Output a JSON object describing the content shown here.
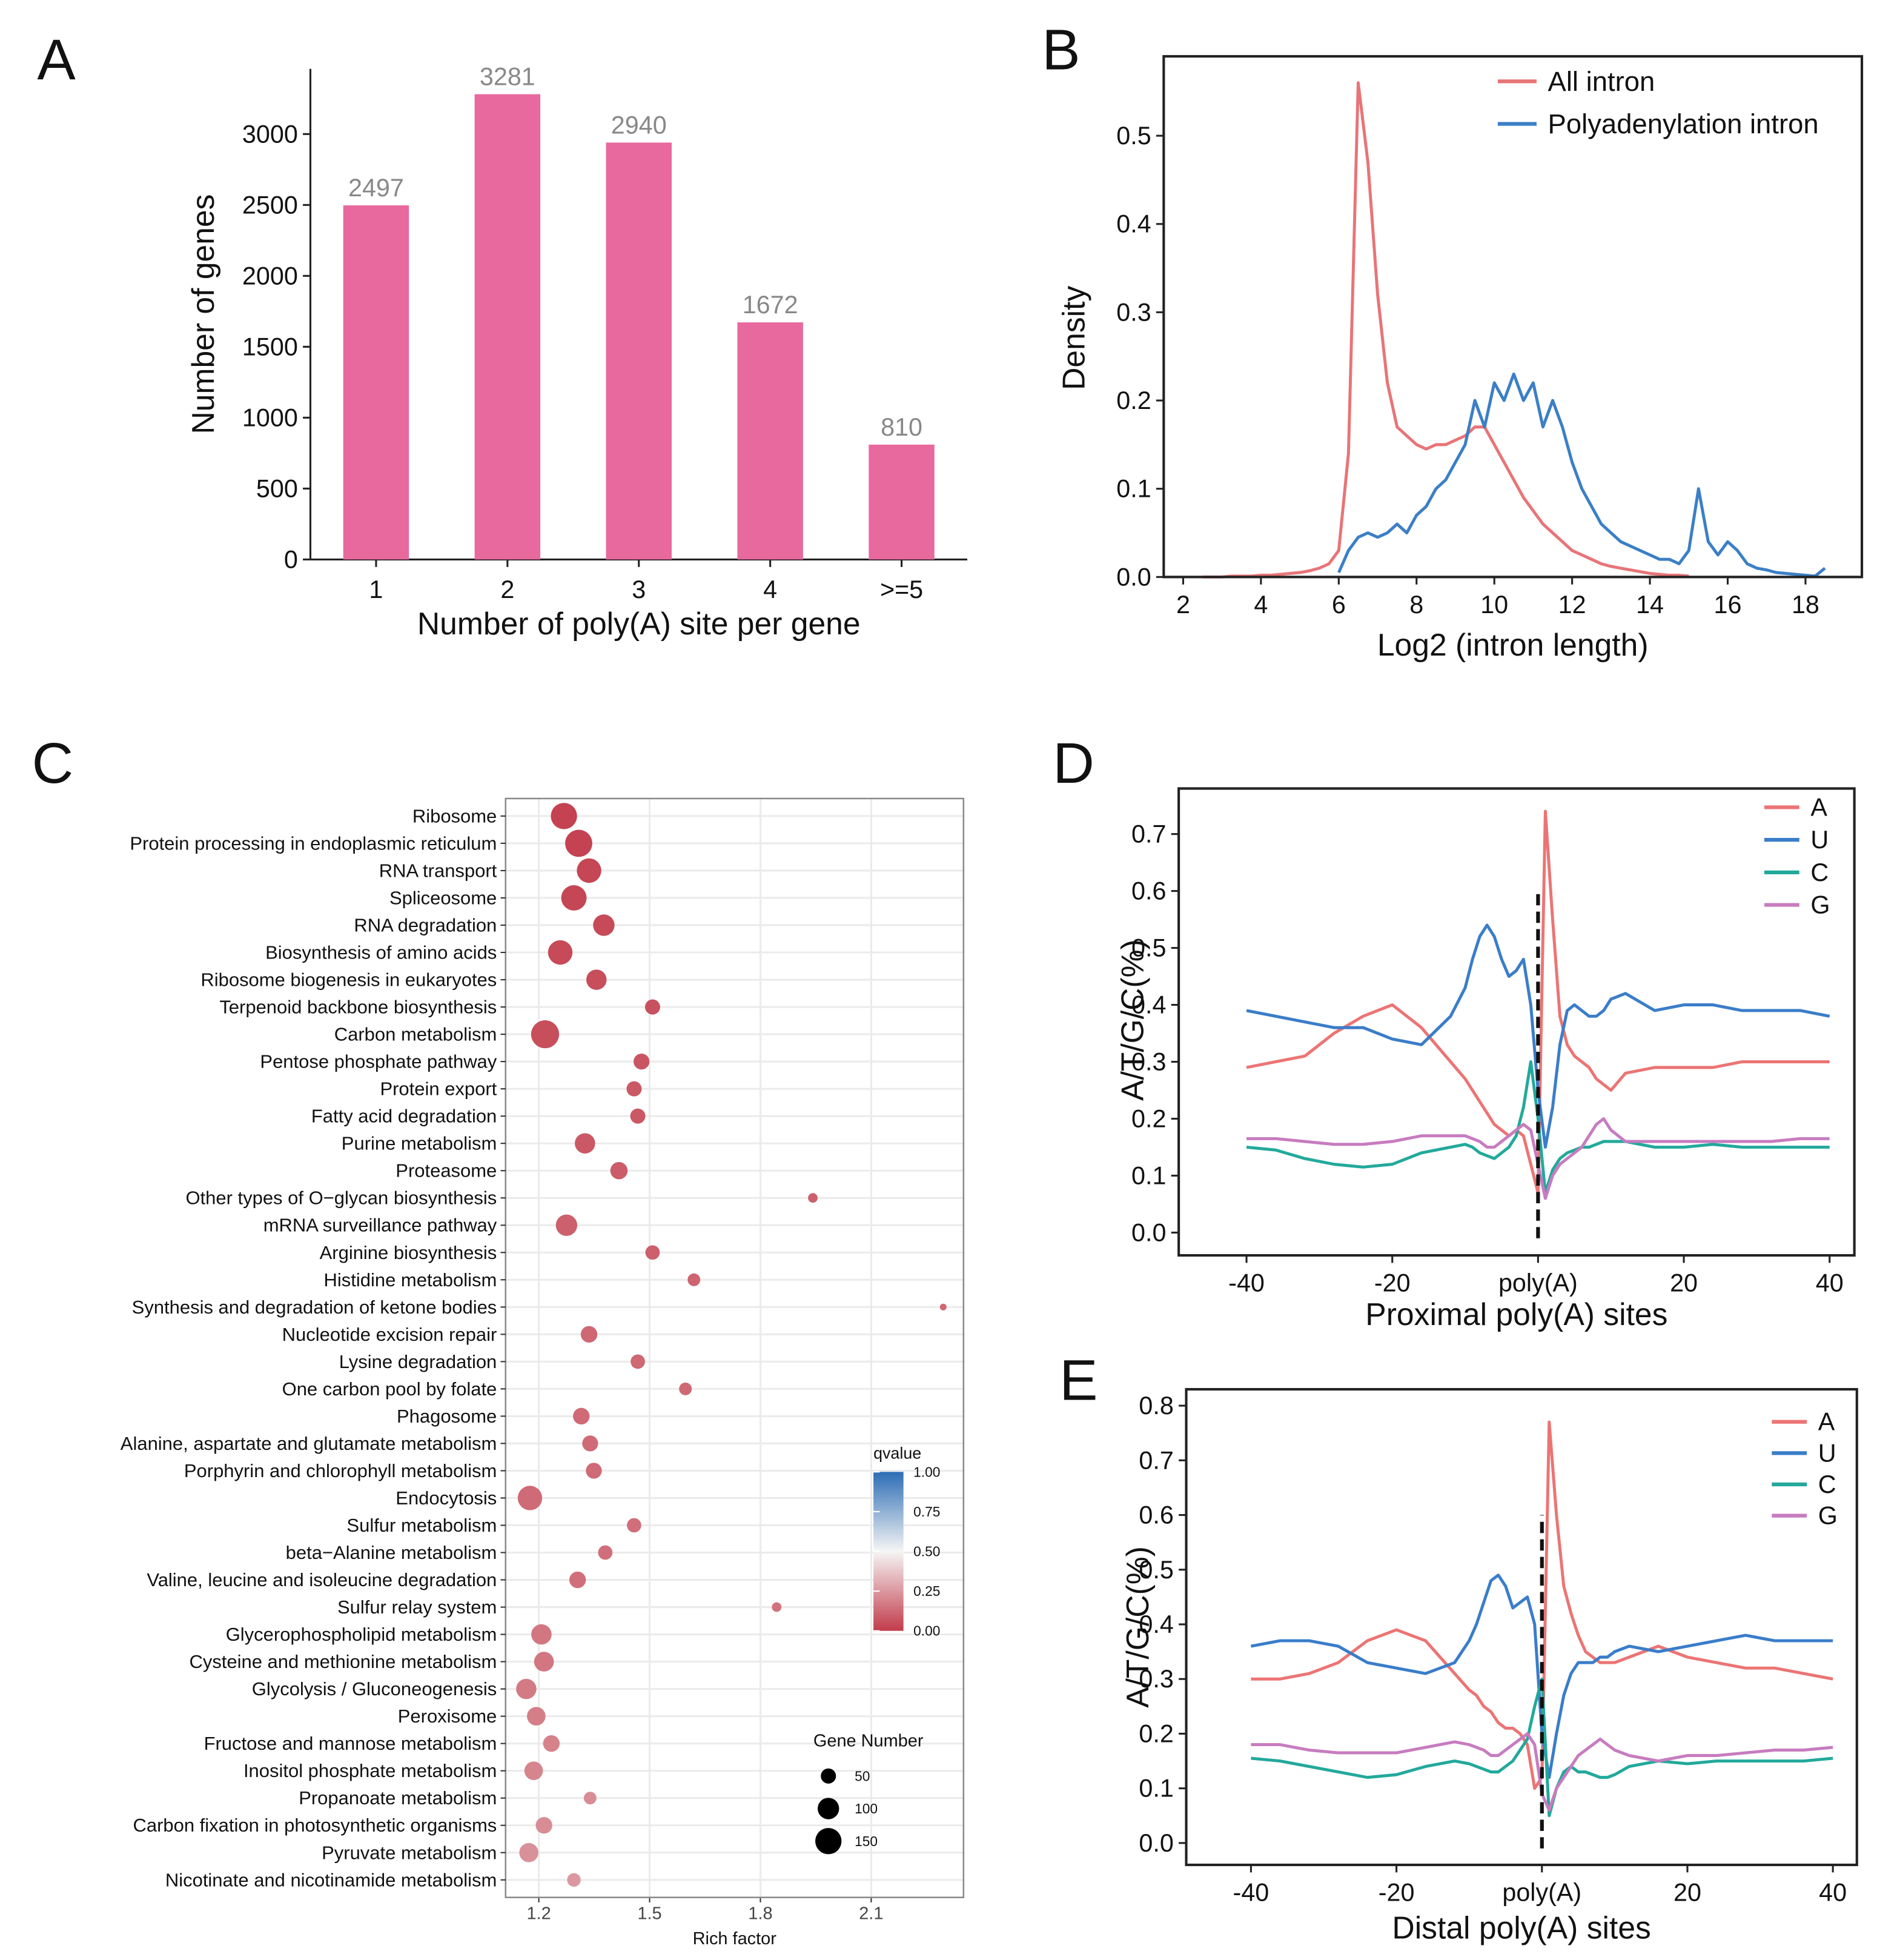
{
  "chart_data": [
    {
      "type": "bar",
      "label": "A",
      "xlabel": "Number of poly(A) site per gene",
      "ylabel": "Number of genes",
      "categories": [
        "1",
        "2",
        "3",
        "4",
        ">=5"
      ],
      "values": [
        2497,
        3281,
        2940,
        1672,
        810
      ],
      "color": "#e8699e",
      "ylim": [
        0,
        3460
      ],
      "yticks": [
        0,
        500,
        1000,
        1500,
        2000,
        2500,
        3000
      ]
    },
    {
      "type": "line",
      "label": "B",
      "xlabel": "Log2 (intron length)",
      "ylabel": "Density",
      "x": [
        2.5,
        2.75,
        3,
        3.25,
        3.5,
        3.75,
        4,
        4.25,
        4.5,
        4.75,
        5,
        5.25,
        5.5,
        5.75,
        6,
        6.25,
        6.5,
        6.75,
        7,
        7.25,
        7.5,
        7.75,
        8,
        8.25,
        8.5,
        8.75,
        9,
        9.25,
        9.5,
        9.75,
        10,
        10.25,
        10.5,
        10.75,
        11,
        11.25,
        11.5,
        11.75,
        12,
        12.25,
        12.5,
        12.75,
        13,
        13.25,
        13.5,
        13.75,
        14,
        14.25,
        14.5,
        14.75,
        15,
        15.25,
        15.5,
        15.75,
        16,
        16.25,
        16.5,
        16.75,
        17,
        17.25,
        17.5,
        17.75,
        18,
        18.25,
        18.5
      ],
      "series": [
        {
          "name": "All intron",
          "color": "#e87477",
          "values": [
            0,
            0,
            0,
            0.001,
            0.001,
            0.001,
            0.002,
            0.002,
            0.003,
            0.004,
            0.005,
            0.007,
            0.01,
            0.015,
            0.03,
            0.14,
            0.56,
            0.47,
            0.32,
            0.22,
            0.17,
            0.16,
            0.15,
            0.145,
            0.15,
            0.15,
            0.155,
            0.16,
            0.17,
            0.17,
            0.15,
            0.13,
            0.11,
            0.09,
            0.075,
            0.06,
            0.05,
            0.04,
            0.03,
            0.025,
            0.02,
            0.015,
            0.012,
            0.01,
            0.008,
            0.006,
            0.004,
            0.003,
            0.002,
            0.002,
            0.001,
            null,
            null,
            null,
            null,
            null,
            null,
            null,
            null,
            null,
            null,
            null,
            null,
            null,
            null
          ]
        },
        {
          "name": "Polyadenylation intron",
          "color": "#3b7fc6",
          "values": [
            null,
            null,
            null,
            null,
            null,
            null,
            null,
            null,
            null,
            null,
            null,
            null,
            null,
            null,
            0.005,
            0.03,
            0.045,
            0.05,
            0.045,
            0.05,
            0.06,
            0.05,
            0.07,
            0.08,
            0.1,
            0.11,
            0.13,
            0.15,
            0.2,
            0.17,
            0.22,
            0.2,
            0.23,
            0.2,
            0.22,
            0.17,
            0.2,
            0.17,
            0.13,
            0.1,
            0.08,
            0.06,
            0.05,
            0.04,
            0.035,
            0.03,
            0.025,
            0.02,
            0.02,
            0.015,
            0.03,
            0.1,
            0.04,
            0.025,
            0.04,
            0.03,
            0.015,
            0.01,
            0.008,
            0.005,
            0.004,
            0.003,
            0.002,
            0.001,
            0.01
          ]
        }
      ],
      "xlim": [
        1.5,
        19.45
      ],
      "xticks": [
        2,
        4,
        6,
        8,
        10,
        12,
        14,
        16,
        18
      ],
      "ylim": [
        0,
        0.59
      ],
      "yticks": [
        {
          "value": 0,
          "label": "0.0"
        },
        0.1,
        0.2,
        0.3,
        0.4,
        0.5
      ]
    },
    {
      "type": "dot",
      "label": "C",
      "xlabel": "Rich factor",
      "categories": [
        "Ribosome",
        "Protein processing in endoplasmic reticulum",
        "RNA transport",
        "Spliceosome",
        "RNA degradation",
        "Biosynthesis of amino acids",
        "Ribosome biogenesis in eukaryotes",
        "Terpenoid backbone biosynthesis",
        "Carbon metabolism",
        "Pentose phosphate pathway",
        "Protein export",
        "Fatty acid degradation",
        "Purine metabolism",
        "Proteasome",
        "Other types of O−glycan biosynthesis",
        "mRNA surveillance pathway",
        "Arginine biosynthesis",
        "Histidine metabolism",
        "Synthesis and degradation of ketone bodies",
        "Nucleotide excision repair",
        "Lysine degradation",
        "One carbon pool by folate",
        "Phagosome",
        "Alanine, aspartate and glutamate metabolism",
        "Porphyrin and chlorophyll metabolism",
        "Endocytosis",
        "Sulfur metabolism",
        "beta−Alanine metabolism",
        "Valine, leucine and isoleucine degradation",
        "Sulfur relay system",
        "Glycerophospholipid metabolism",
        "Cysteine and methionine metabolism",
        "Glycolysis / Gluconeogenesis",
        "Peroxisome",
        "Fructose and mannose metabolism",
        "Inositol phosphate metabolism",
        "Propanoate metabolism",
        "Carbon fixation in photosynthetic organisms",
        "Pyruvate metabolism",
        "Nicotinate and nicotinamide metabolism"
      ],
      "values": [
        1.268,
        1.308,
        1.336,
        1.295,
        1.376,
        1.258,
        1.356,
        1.508,
        1.217,
        1.478,
        1.458,
        1.468,
        1.325,
        1.417,
        1.942,
        1.275,
        1.508,
        1.62,
        2.295,
        1.336,
        1.468,
        1.597,
        1.315,
        1.339,
        1.349,
        1.176,
        1.458,
        1.38,
        1.305,
        1.844,
        1.207,
        1.214,
        1.166,
        1.193,
        1.234,
        1.186,
        1.339,
        1.214,
        1.173,
        1.295
      ],
      "sizes": [
        150,
        160,
        130,
        140,
        100,
        130,
        90,
        50,
        170,
        55,
        50,
        50,
        90,
        65,
        20,
        100,
        45,
        35,
        10,
        60,
        45,
        35,
        60,
        55,
        55,
        130,
        45,
        45,
        60,
        20,
        90,
        85,
        90,
        75,
        60,
        75,
        35,
        60,
        80,
        40
      ],
      "qvalues": [
        0.02,
        0.02,
        0.03,
        0.03,
        0.04,
        0.04,
        0.05,
        0.06,
        0.05,
        0.07,
        0.08,
        0.08,
        0.08,
        0.09,
        0.1,
        0.1,
        0.1,
        0.11,
        0.12,
        0.12,
        0.12,
        0.12,
        0.13,
        0.13,
        0.13,
        0.13,
        0.14,
        0.14,
        0.14,
        0.15,
        0.16,
        0.16,
        0.17,
        0.18,
        0.19,
        0.2,
        0.22,
        0.22,
        0.23,
        0.25
      ],
      "colormap": [
        "#c23b4a",
        "#f5f5f5",
        "#2d6db5"
      ],
      "xlim": [
        1.11,
        2.35
      ],
      "xticks": [
        1.2,
        1.5,
        1.8,
        2.1
      ],
      "grid": true,
      "color_legend": {
        "title": "qvalue",
        "lim": [
          0,
          1
        ],
        "ticks": [
          {
            "value": 0,
            "label": "0.00"
          },
          {
            "value": 0.25,
            "label": "0.25"
          },
          {
            "value": 0.5,
            "label": "0.50"
          },
          {
            "value": 0.75,
            "label": "0.75"
          },
          {
            "value": 1,
            "label": "1.00"
          }
        ]
      },
      "size_legend": {
        "title": "Gene Number",
        "values": [
          50,
          100,
          150
        ]
      }
    },
    {
      "type": "line",
      "label": "D",
      "xlabel": "Proximal poly(A) sites",
      "ylabel": "A/T/G/C(%)",
      "x": [
        -40,
        -36,
        -32,
        -28,
        -24,
        -20,
        -16,
        -12,
        -10,
        -9,
        -8,
        -7,
        -6,
        -5,
        -4,
        -3,
        -2,
        -1,
        0,
        1,
        2,
        3,
        4,
        5,
        6,
        7,
        8,
        9,
        10,
        12,
        16,
        20,
        24,
        28,
        32,
        36,
        40
      ],
      "series": [
        {
          "name": "A",
          "color": "#ec7474",
          "values": [
            0.29,
            0.3,
            0.31,
            0.35,
            0.38,
            0.4,
            0.36,
            0.3,
            0.27,
            0.25,
            0.23,
            0.21,
            0.19,
            0.18,
            0.17,
            0.18,
            0.17,
            0.12,
            0.07,
            0.74,
            0.55,
            0.38,
            0.33,
            0.31,
            0.3,
            0.29,
            0.27,
            0.26,
            0.25,
            0.28,
            0.29,
            0.29,
            0.29,
            0.3,
            0.3,
            0.3,
            0.3
          ]
        },
        {
          "name": "U",
          "color": "#3a7dc9",
          "values": [
            0.39,
            0.38,
            0.37,
            0.36,
            0.36,
            0.34,
            0.33,
            0.38,
            0.43,
            0.48,
            0.52,
            0.54,
            0.52,
            0.48,
            0.45,
            0.46,
            0.48,
            0.4,
            0.25,
            0.15,
            0.22,
            0.33,
            0.39,
            0.4,
            0.39,
            0.38,
            0.38,
            0.39,
            0.41,
            0.42,
            0.39,
            0.4,
            0.4,
            0.39,
            0.39,
            0.39,
            0.38
          ]
        },
        {
          "name": "C",
          "color": "#22a99b",
          "values": [
            0.15,
            0.145,
            0.13,
            0.12,
            0.115,
            0.12,
            0.14,
            0.15,
            0.155,
            0.15,
            0.14,
            0.135,
            0.13,
            0.14,
            0.15,
            0.17,
            0.22,
            0.3,
            0.2,
            0.07,
            0.11,
            0.13,
            0.14,
            0.145,
            0.15,
            0.15,
            0.155,
            0.16,
            0.16,
            0.16,
            0.15,
            0.15,
            0.155,
            0.15,
            0.15,
            0.15,
            0.15
          ]
        },
        {
          "name": "G",
          "color": "#c77cc0",
          "values": [
            0.165,
            0.165,
            0.16,
            0.155,
            0.155,
            0.16,
            0.17,
            0.17,
            0.17,
            0.165,
            0.16,
            0.15,
            0.15,
            0.16,
            0.17,
            0.18,
            0.19,
            0.18,
            0.12,
            0.06,
            0.1,
            0.12,
            0.13,
            0.14,
            0.15,
            0.17,
            0.19,
            0.2,
            0.18,
            0.16,
            0.16,
            0.16,
            0.16,
            0.16,
            0.16,
            0.165,
            0.165
          ]
        }
      ],
      "reference_line": {
        "x": 0,
        "y": [
          -0.01,
          0.6
        ]
      },
      "xlim": [
        -49.3,
        43.4
      ],
      "xticks": [
        -40,
        -20,
        {
          "value": 0,
          "label": "poly(A)"
        },
        20,
        40
      ],
      "ylim": [
        -0.04,
        0.78
      ],
      "yticks": [
        {
          "value": 0,
          "label": "0.0"
        },
        0.1,
        0.2,
        0.3,
        0.4,
        0.5,
        0.6,
        0.7
      ]
    },
    {
      "type": "line",
      "label": "E",
      "xlabel": "Distal poly(A) sites",
      "ylabel": "A/T/G/C(%)",
      "x": [
        -40,
        -36,
        -32,
        -28,
        -24,
        -20,
        -16,
        -12,
        -10,
        -9,
        -8,
        -7,
        -6,
        -5,
        -4,
        -3,
        -2,
        -1,
        0,
        1,
        2,
        3,
        4,
        5,
        6,
        7,
        8,
        9,
        10,
        12,
        16,
        20,
        24,
        28,
        32,
        36,
        40
      ],
      "series": [
        {
          "name": "A",
          "color": "#ec7474",
          "values": [
            0.3,
            0.3,
            0.31,
            0.33,
            0.37,
            0.39,
            0.37,
            0.31,
            0.28,
            0.27,
            0.25,
            0.24,
            0.22,
            0.21,
            0.21,
            0.2,
            0.18,
            0.1,
            0.12,
            0.77,
            0.6,
            0.47,
            0.42,
            0.38,
            0.35,
            0.34,
            0.33,
            0.33,
            0.33,
            0.34,
            0.36,
            0.34,
            0.33,
            0.32,
            0.32,
            0.31,
            0.3
          ]
        },
        {
          "name": "U",
          "color": "#3a7dc9",
          "values": [
            0.36,
            0.37,
            0.37,
            0.36,
            0.33,
            0.32,
            0.31,
            0.33,
            0.37,
            0.4,
            0.44,
            0.48,
            0.49,
            0.47,
            0.43,
            0.44,
            0.45,
            0.4,
            0.2,
            0.12,
            0.2,
            0.27,
            0.31,
            0.33,
            0.33,
            0.33,
            0.34,
            0.34,
            0.35,
            0.36,
            0.35,
            0.36,
            0.37,
            0.38,
            0.37,
            0.37,
            0.37
          ]
        },
        {
          "name": "C",
          "color": "#22a99b",
          "values": [
            0.155,
            0.15,
            0.14,
            0.13,
            0.12,
            0.125,
            0.14,
            0.15,
            0.145,
            0.14,
            0.135,
            0.13,
            0.13,
            0.14,
            0.15,
            0.17,
            0.19,
            0.25,
            0.3,
            0.05,
            0.1,
            0.13,
            0.14,
            0.13,
            0.13,
            0.125,
            0.12,
            0.12,
            0.125,
            0.14,
            0.15,
            0.145,
            0.15,
            0.15,
            0.15,
            0.15,
            0.155
          ]
        },
        {
          "name": "G",
          "color": "#c77cc0",
          "values": [
            0.18,
            0.18,
            0.17,
            0.165,
            0.165,
            0.165,
            0.175,
            0.185,
            0.18,
            0.175,
            0.17,
            0.16,
            0.16,
            0.17,
            0.18,
            0.19,
            0.2,
            0.18,
            0.09,
            0.06,
            0.1,
            0.12,
            0.14,
            0.16,
            0.17,
            0.18,
            0.19,
            0.18,
            0.17,
            0.16,
            0.15,
            0.16,
            0.16,
            0.165,
            0.17,
            0.17,
            0.175
          ]
        }
      ],
      "reference_line": {
        "x": 0,
        "y": [
          -0.01,
          0.6
        ]
      },
      "xlim": [
        -48.9,
        43.3
      ],
      "xticks": [
        -40,
        -20,
        {
          "value": 0,
          "label": "poly(A)"
        },
        20,
        40
      ],
      "ylim": [
        -0.04,
        0.83
      ],
      "yticks": [
        {
          "value": 0,
          "label": "0.0"
        },
        0.1,
        0.2,
        0.3,
        0.4,
        0.5,
        0.6,
        0.7,
        0.8
      ]
    }
  ]
}
